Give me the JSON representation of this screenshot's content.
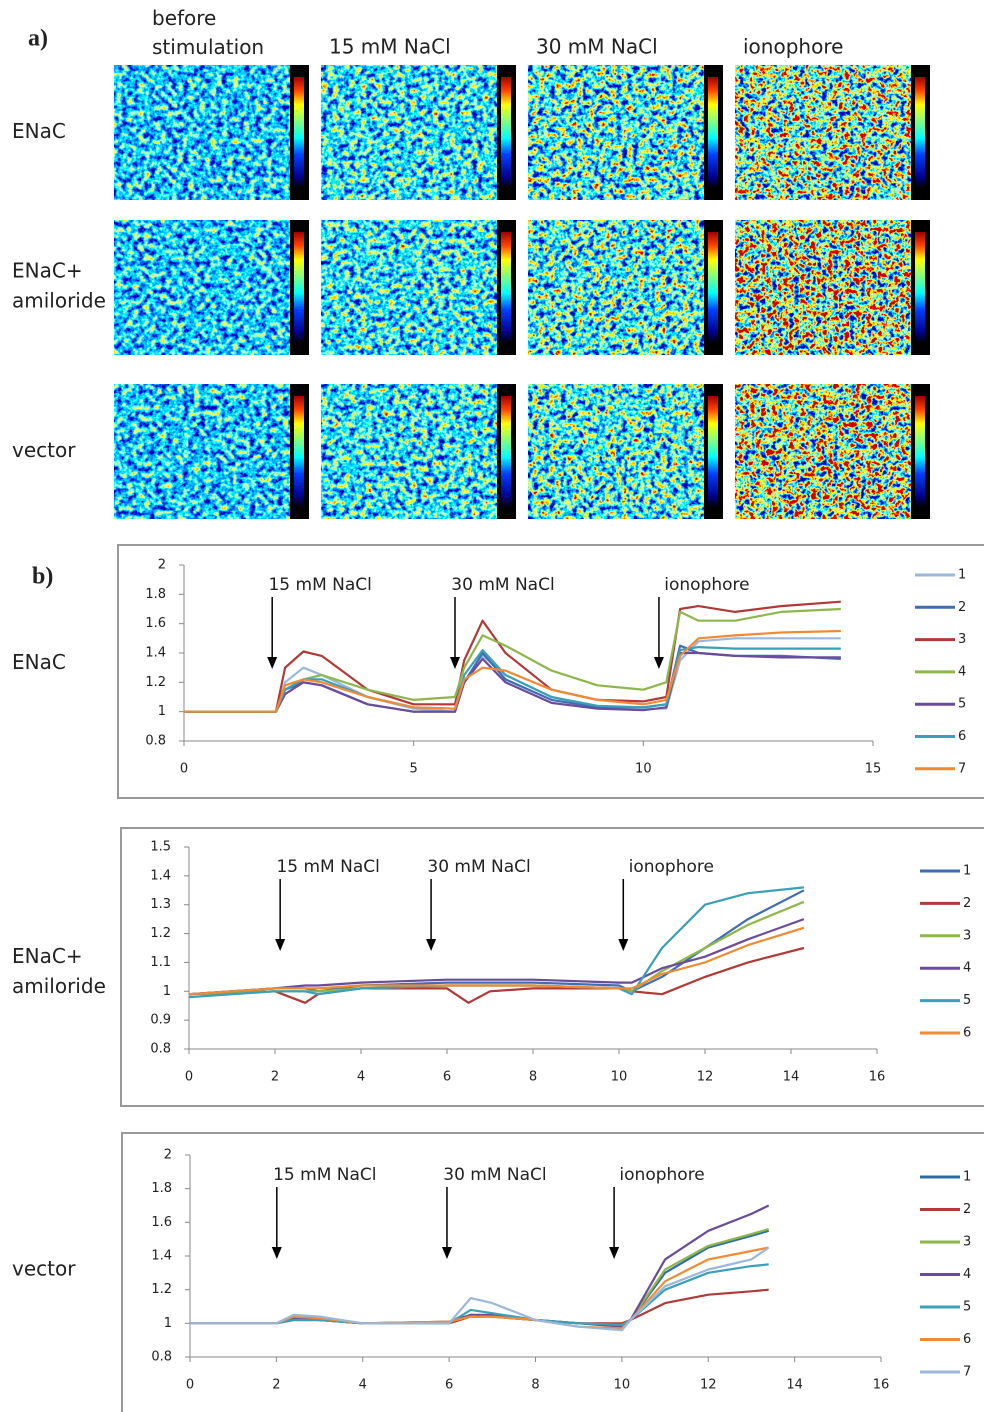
{
  "figure": {
    "panel_a": "a)",
    "panel_b": "b)",
    "column_labels": [
      "before stimulation",
      "15 mM NaCl",
      "30 mM NaCl",
      "ionophore"
    ],
    "row_labels": [
      "ENaC",
      "ENaC+ amiloride",
      "vector"
    ]
  },
  "chart_data": [
    {
      "type": "line",
      "row_label": "ENaC",
      "grid": false,
      "x": [
        0,
        2,
        2.2,
        2.6,
        3,
        4,
        5,
        5.9,
        6.1,
        6.5,
        7,
        8,
        9,
        10,
        10.5,
        10.8,
        11.2,
        12,
        13,
        14.3
      ],
      "xlim": [
        0,
        15
      ],
      "xticks": [
        0,
        5,
        10,
        15
      ],
      "ylim": [
        0.8,
        2
      ],
      "yticks": [
        0.8,
        1,
        1.2,
        1.4,
        1.6,
        1.8,
        2
      ],
      "annotations": [
        {
          "text": "15 mM NaCl",
          "x": 1.92
        },
        {
          "text": "30 mM NaCl",
          "x": 5.9
        },
        {
          "text": "ionophore",
          "x": 10.34
        }
      ],
      "series": [
        {
          "name": "1",
          "color": "#9bb7d9",
          "values": [
            1,
            1,
            1.2,
            1.3,
            1.25,
            1.1,
            1.02,
            1,
            1.2,
            1.38,
            1.25,
            1.1,
            1.03,
            1.02,
            1.02,
            1.35,
            1.48,
            1.5,
            1.5,
            1.5
          ]
        },
        {
          "name": "2",
          "color": "#3f6eb4",
          "values": [
            1,
            1,
            1.15,
            1.2,
            1.18,
            1.05,
            1,
            1,
            1.2,
            1.4,
            1.22,
            1.08,
            1.03,
            1.03,
            1.05,
            1.45,
            1.4,
            1.38,
            1.38,
            1.36
          ]
        },
        {
          "name": "3",
          "color": "#b03a38",
          "values": [
            1,
            1,
            1.3,
            1.41,
            1.38,
            1.15,
            1.05,
            1.05,
            1.35,
            1.62,
            1.4,
            1.15,
            1.08,
            1.07,
            1.1,
            1.7,
            1.72,
            1.68,
            1.72,
            1.75
          ]
        },
        {
          "name": "4",
          "color": "#8db64c",
          "values": [
            1,
            1,
            1.15,
            1.22,
            1.25,
            1.15,
            1.08,
            1.1,
            1.3,
            1.52,
            1.45,
            1.28,
            1.18,
            1.15,
            1.2,
            1.68,
            1.62,
            1.62,
            1.68,
            1.7
          ]
        },
        {
          "name": "5",
          "color": "#6b4c9a",
          "values": [
            1,
            1,
            1.12,
            1.2,
            1.18,
            1.05,
            1,
            1,
            1.2,
            1.36,
            1.2,
            1.06,
            1.02,
            1.01,
            1.03,
            1.4,
            1.4,
            1.38,
            1.37,
            1.37
          ]
        },
        {
          "name": "6",
          "color": "#3aa0b8",
          "values": [
            1,
            1,
            1.15,
            1.22,
            1.22,
            1.1,
            1.03,
            1.02,
            1.25,
            1.42,
            1.25,
            1.1,
            1.04,
            1.03,
            1.05,
            1.42,
            1.44,
            1.43,
            1.43,
            1.43
          ]
        },
        {
          "name": "7",
          "color": "#ef8a35",
          "values": [
            1,
            1,
            1.18,
            1.22,
            1.2,
            1.1,
            1.03,
            1.02,
            1.22,
            1.3,
            1.28,
            1.15,
            1.08,
            1.05,
            1.08,
            1.38,
            1.5,
            1.52,
            1.54,
            1.55
          ]
        }
      ]
    },
    {
      "type": "line",
      "row_label": "ENaC+ amiloride",
      "grid": false,
      "x": [
        0,
        2,
        2.7,
        3,
        4,
        6,
        6.5,
        7,
        8,
        10,
        10.3,
        11,
        12,
        13,
        14.3
      ],
      "xlim": [
        0,
        16
      ],
      "xticks": [
        0,
        2,
        4,
        6,
        8,
        10,
        12,
        14,
        16
      ],
      "ylim": [
        0.8,
        1.5
      ],
      "yticks": [
        0.8,
        0.9,
        1,
        1.1,
        1.2,
        1.3,
        1.4,
        1.5
      ],
      "annotations": [
        {
          "text": "15 mM NaCl",
          "x": 2.12
        },
        {
          "text": "30 mM NaCl",
          "x": 5.63
        },
        {
          "text": "ionophore",
          "x": 10.1
        }
      ],
      "series": [
        {
          "name": "1",
          "color": "#3f6eb4",
          "values": [
            0.99,
            1.01,
            1.01,
            1,
            1.02,
            1.03,
            1.03,
            1.03,
            1.03,
            1.02,
            1,
            1.05,
            1.15,
            1.25,
            1.35
          ]
        },
        {
          "name": "2",
          "color": "#b03a38",
          "values": [
            0.99,
            1,
            0.96,
            0.99,
            1.01,
            1.01,
            0.96,
            1,
            1.01,
            1.01,
            1,
            0.99,
            1.05,
            1.1,
            1.15
          ]
        },
        {
          "name": "3",
          "color": "#8db64c",
          "values": [
            0.99,
            1,
            1,
            1,
            1.01,
            1.02,
            1.02,
            1.02,
            1.02,
            1.01,
            1,
            1.07,
            1.15,
            1.23,
            1.31
          ]
        },
        {
          "name": "4",
          "color": "#6b4c9a",
          "values": [
            0.99,
            1.01,
            1.02,
            1.02,
            1.03,
            1.04,
            1.04,
            1.04,
            1.04,
            1.03,
            1.03,
            1.08,
            1.12,
            1.18,
            1.25
          ]
        },
        {
          "name": "5",
          "color": "#3aa0b8",
          "values": [
            0.98,
            1,
            1,
            0.99,
            1.01,
            1.02,
            1.02,
            1.02,
            1.02,
            1.01,
            0.99,
            1.15,
            1.3,
            1.34,
            1.36
          ]
        },
        {
          "name": "6",
          "color": "#ef8a35",
          "values": [
            0.99,
            1.01,
            1.01,
            1.01,
            1.02,
            1.02,
            1.02,
            1.02,
            1.02,
            1.01,
            1.01,
            1.06,
            1.1,
            1.16,
            1.22
          ]
        }
      ]
    },
    {
      "type": "line",
      "row_label": "vector",
      "grid": false,
      "x": [
        0,
        2,
        2.4,
        3,
        4,
        6,
        6.5,
        7,
        8,
        9,
        10,
        10.2,
        11,
        12,
        13,
        13.4
      ],
      "xlim": [
        0,
        16
      ],
      "xticks": [
        0,
        2,
        4,
        6,
        8,
        10,
        12,
        14,
        16
      ],
      "ylim": [
        0.8,
        2
      ],
      "yticks": [
        0.8,
        1,
        1.2,
        1.4,
        1.6,
        1.8,
        2
      ],
      "annotations": [
        {
          "text": "15 mM NaCl",
          "x": 2.01
        },
        {
          "text": "30 mM NaCl",
          "x": 5.95
        },
        {
          "text": "ionophore",
          "x": 9.82
        }
      ],
      "series": [
        {
          "name": "1",
          "color": "#2e6ca4",
          "values": [
            1,
            1,
            1.03,
            1.02,
            1,
            1,
            1.05,
            1.04,
            1.02,
            1,
            0.99,
            1.02,
            1.3,
            1.45,
            1.52,
            1.55
          ]
        },
        {
          "name": "2",
          "color": "#b03a38",
          "values": [
            1,
            1,
            1.02,
            1.02,
            1,
            1,
            1.04,
            1.04,
            1.02,
            1,
            1,
            1.02,
            1.12,
            1.17,
            1.19,
            1.2
          ]
        },
        {
          "name": "3",
          "color": "#8db64c",
          "values": [
            1,
            1,
            1.03,
            1.02,
            1,
            1.01,
            1.05,
            1.04,
            1.02,
            1,
            0.99,
            1.02,
            1.32,
            1.46,
            1.53,
            1.56
          ]
        },
        {
          "name": "4",
          "color": "#6b4c9a",
          "values": [
            1,
            1,
            1.03,
            1.02,
            1,
            1.01,
            1.05,
            1.05,
            1.02,
            1,
            0.98,
            1.02,
            1.38,
            1.55,
            1.65,
            1.7
          ]
        },
        {
          "name": "5",
          "color": "#3aa0b8",
          "values": [
            1,
            1,
            1.02,
            1.02,
            1,
            1,
            1.08,
            1.06,
            1.02,
            1,
            0.99,
            1.02,
            1.2,
            1.3,
            1.34,
            1.35
          ]
        },
        {
          "name": "6",
          "color": "#ef8a35",
          "values": [
            1,
            1,
            1.04,
            1.03,
            1,
            1.01,
            1.04,
            1.04,
            1.02,
            0.98,
            0.97,
            1.02,
            1.25,
            1.38,
            1.43,
            1.45
          ]
        },
        {
          "name": "7",
          "color": "#9bb7d9",
          "values": [
            1,
            1,
            1.05,
            1.04,
            1,
            1,
            1.15,
            1.12,
            1.02,
            0.98,
            0.96,
            1.02,
            1.22,
            1.32,
            1.38,
            1.45
          ]
        }
      ]
    }
  ]
}
